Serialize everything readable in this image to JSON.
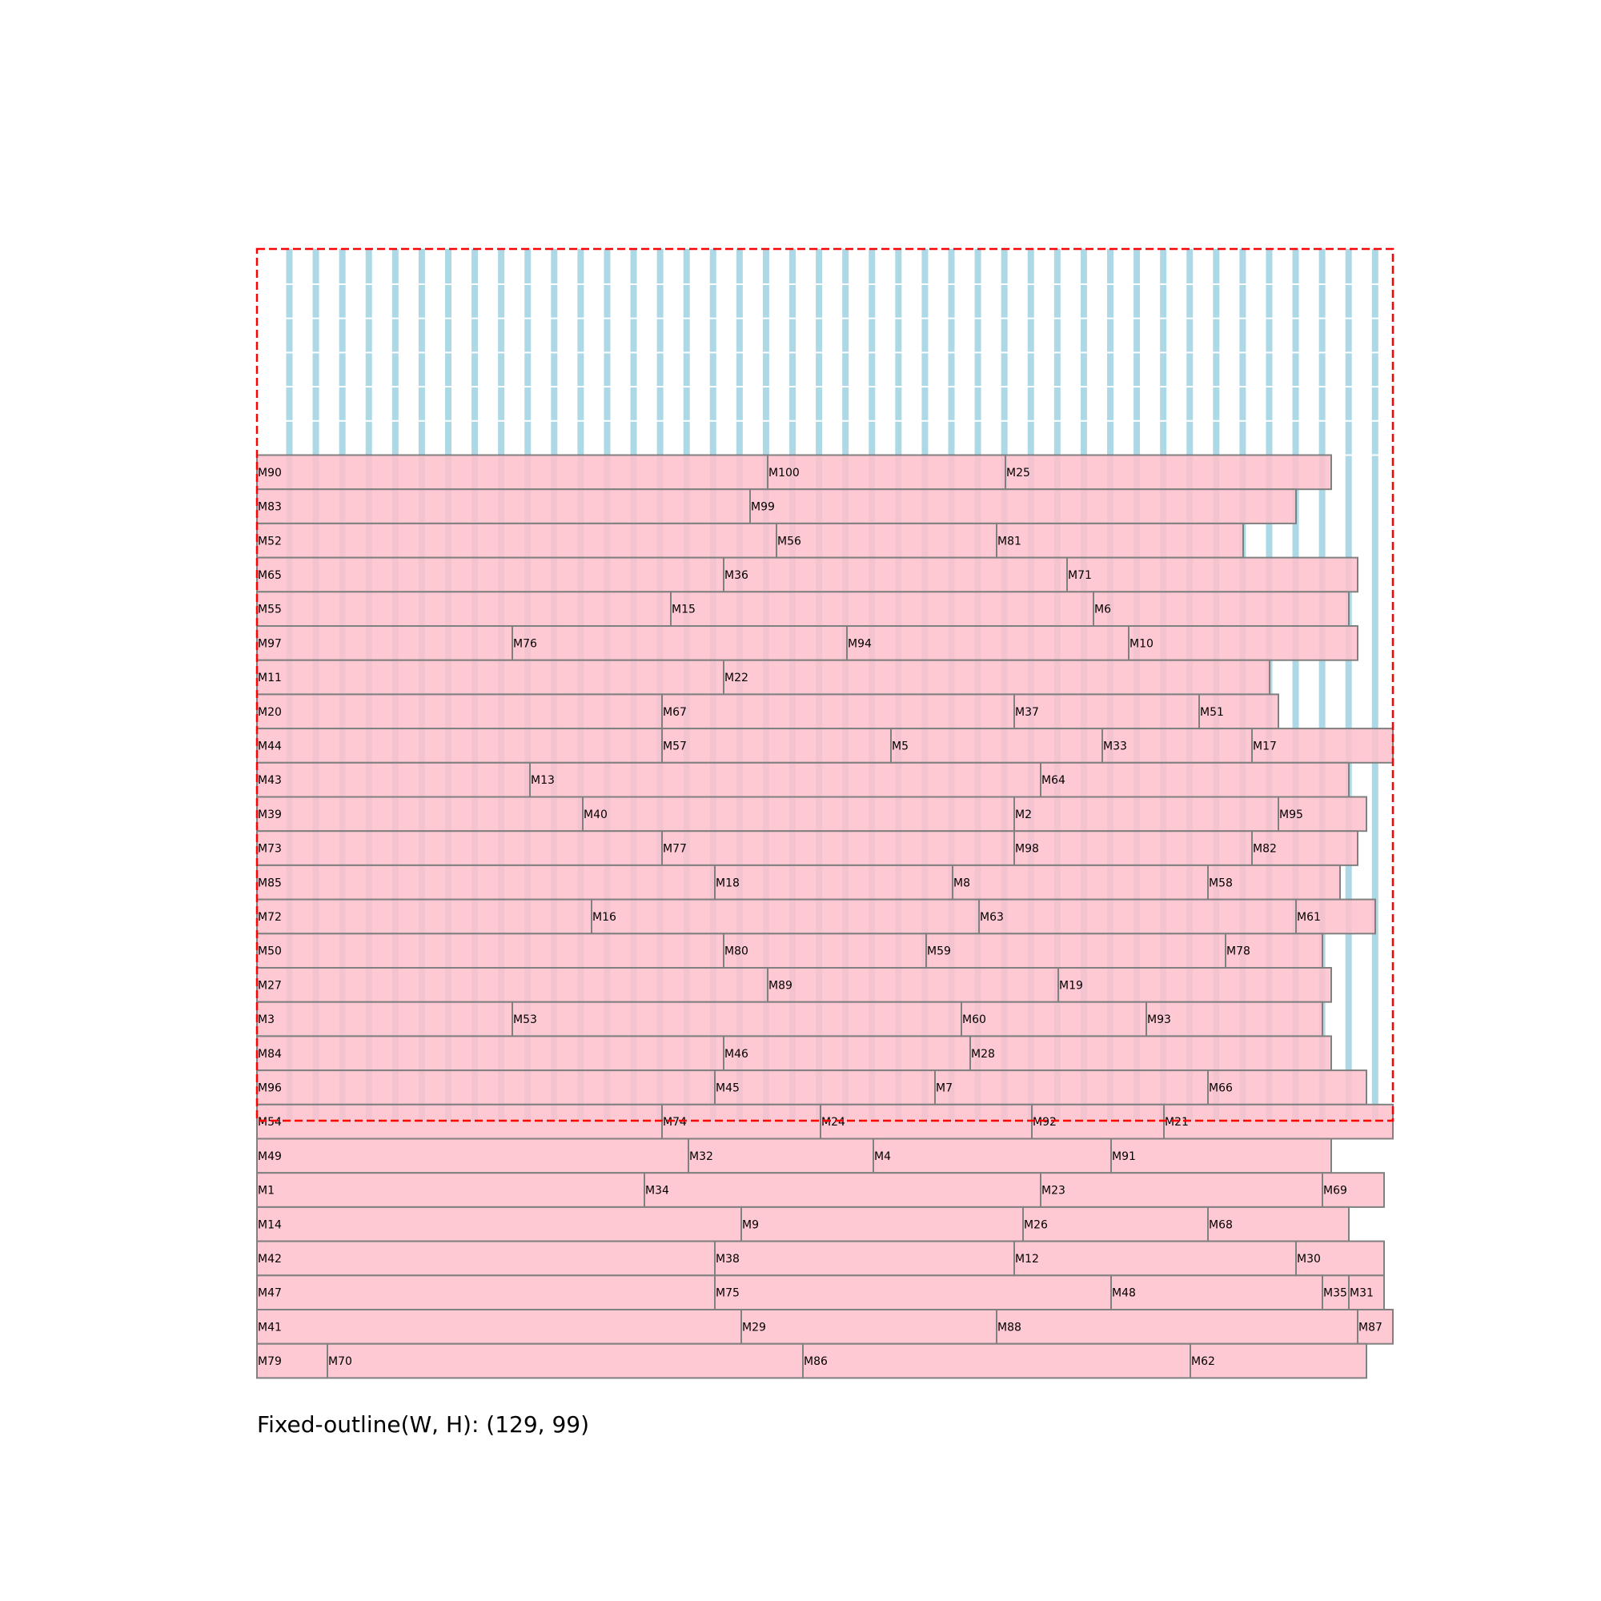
{
  "caption": "Fixed-outline(W, H): (129, 99)",
  "colors": {
    "outline": "#ff0000",
    "module_fill": "#ffc0cb",
    "module_edge": "#808080",
    "column": "#add8e6"
  },
  "outline": {
    "W": 129,
    "H": 99
  },
  "rows": [
    [
      [
        "M90",
        58
      ],
      [
        "M100",
        27
      ],
      [
        "M25",
        37
      ]
    ],
    [
      [
        "M83",
        56
      ],
      [
        "M99",
        62
      ]
    ],
    [
      [
        "M52",
        59
      ],
      [
        "M56",
        25
      ],
      [
        "M81",
        28
      ]
    ],
    [
      [
        "M65",
        53
      ],
      [
        "M36",
        39
      ],
      [
        "M71",
        33
      ]
    ],
    [
      [
        "M55",
        47
      ],
      [
        "M15",
        48
      ],
      [
        "M6",
        29
      ]
    ],
    [
      [
        "M97",
        29
      ],
      [
        "M76",
        38
      ],
      [
        "M94",
        32
      ],
      [
        "M10",
        26
      ]
    ],
    [
      [
        "M11",
        53
      ],
      [
        "M22",
        62
      ]
    ],
    [
      [
        "M20",
        46
      ],
      [
        "M67",
        40
      ],
      [
        "M37",
        21
      ],
      [
        "M51",
        9
      ]
    ],
    [
      [
        "M44",
        46
      ],
      [
        "M57",
        26
      ],
      [
        "M5",
        24
      ],
      [
        "M33",
        17
      ],
      [
        "M17",
        16
      ]
    ],
    [
      [
        "M43",
        31
      ],
      [
        "M13",
        58
      ],
      [
        "M64",
        35
      ]
    ],
    [
      [
        "M39",
        37
      ],
      [
        "M40",
        49
      ],
      [
        "M2",
        30
      ],
      [
        "M95",
        10
      ]
    ],
    [
      [
        "M73",
        46
      ],
      [
        "M77",
        40
      ],
      [
        "M98",
        27
      ],
      [
        "M82",
        12
      ]
    ],
    [
      [
        "M85",
        52
      ],
      [
        "M18",
        27
      ],
      [
        "M8",
        29
      ],
      [
        "M58",
        15
      ]
    ],
    [
      [
        "M72",
        38
      ],
      [
        "M16",
        44
      ],
      [
        "M63",
        36
      ],
      [
        "M61",
        9
      ]
    ],
    [
      [
        "M50",
        53
      ],
      [
        "M80",
        23
      ],
      [
        "M59",
        34
      ],
      [
        "M78",
        11
      ]
    ],
    [
      [
        "M27",
        58
      ],
      [
        "M89",
        33
      ],
      [
        "M19",
        31
      ]
    ],
    [
      [
        "M3",
        29
      ],
      [
        "M53",
        51
      ],
      [
        "M60",
        21
      ],
      [
        "M93",
        20
      ]
    ],
    [
      [
        "M84",
        53
      ],
      [
        "M46",
        28
      ],
      [
        "M28",
        41
      ]
    ],
    [
      [
        "M96",
        52
      ],
      [
        "M45",
        25
      ],
      [
        "M7",
        31
      ],
      [
        "M66",
        18
      ]
    ],
    [
      [
        "M54",
        46
      ],
      [
        "M74",
        18
      ],
      [
        "M24",
        24
      ],
      [
        "M92",
        15
      ],
      [
        "M21",
        26
      ]
    ],
    [
      [
        "M49",
        49
      ],
      [
        "M32",
        21
      ],
      [
        "M4",
        27
      ],
      [
        "M91",
        25
      ]
    ],
    [
      [
        "M1",
        44
      ],
      [
        "M34",
        45
      ],
      [
        "M23",
        32
      ],
      [
        "M69",
        7
      ]
    ],
    [
      [
        "M14",
        55
      ],
      [
        "M9",
        32
      ],
      [
        "M26",
        21
      ],
      [
        "M68",
        16
      ]
    ],
    [
      [
        "M42",
        52
      ],
      [
        "M38",
        34
      ],
      [
        "M12",
        32
      ],
      [
        "M30",
        10
      ]
    ],
    [
      [
        "M47",
        52
      ],
      [
        "M75",
        45
      ],
      [
        "M48",
        24
      ],
      [
        "M35",
        3
      ],
      [
        "M31",
        4
      ]
    ],
    [
      [
        "M41",
        55
      ],
      [
        "M29",
        29
      ],
      [
        "M88",
        41
      ],
      [
        "M87",
        4
      ]
    ],
    [
      [
        "M79",
        8
      ],
      [
        "M70",
        54
      ],
      [
        "M86",
        44
      ],
      [
        "M62",
        20
      ]
    ]
  ]
}
